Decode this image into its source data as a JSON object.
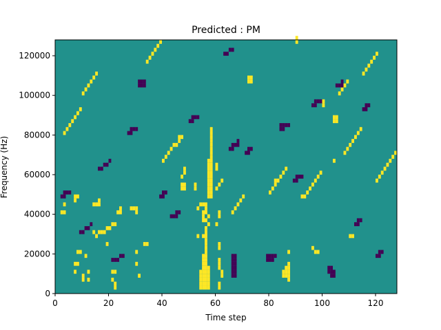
{
  "chart_data": {
    "type": "heatmap",
    "title": "Predicted : PM",
    "xlabel": "Time step",
    "ylabel": "Frequency (Hz)",
    "xlim": [
      0,
      128
    ],
    "ylim": [
      0,
      128000
    ],
    "x_ticks": [
      0,
      20,
      40,
      60,
      80,
      100,
      120
    ],
    "y_ticks": [
      0,
      20000,
      40000,
      60000,
      80000,
      100000,
      120000
    ],
    "grid": false,
    "legend": "none",
    "colors": {
      "background_value": "#21918c",
      "high_value": "#fde725",
      "low_value": "#440154"
    },
    "grid_shape": {
      "time_steps": 128,
      "freq_bins": 64,
      "bin_hz": 2000
    },
    "cells_high": [
      [
        54,
        1
      ],
      [
        55,
        1
      ],
      [
        56,
        1
      ],
      [
        57,
        1
      ],
      [
        54,
        2
      ],
      [
        55,
        2
      ],
      [
        56,
        2
      ],
      [
        57,
        2
      ],
      [
        54,
        3
      ],
      [
        55,
        3
      ],
      [
        56,
        3
      ],
      [
        57,
        3
      ],
      [
        54,
        4
      ],
      [
        55,
        4
      ],
      [
        56,
        4
      ],
      [
        57,
        4
      ],
      [
        54,
        5
      ],
      [
        55,
        5
      ],
      [
        56,
        5
      ],
      [
        57,
        5
      ],
      [
        55,
        6
      ],
      [
        56,
        6
      ],
      [
        57,
        6
      ],
      [
        55,
        7
      ],
      [
        56,
        7
      ],
      [
        55,
        8
      ],
      [
        56,
        8
      ],
      [
        55,
        9
      ],
      [
        56,
        9
      ],
      [
        56,
        10
      ],
      [
        56,
        11
      ],
      [
        56,
        12
      ],
      [
        56,
        13
      ],
      [
        55,
        14
      ],
      [
        56,
        14
      ],
      [
        56,
        15
      ],
      [
        56,
        16
      ],
      [
        57,
        17
      ],
      [
        55,
        18
      ],
      [
        56,
        18
      ],
      [
        57,
        19
      ],
      [
        55,
        20
      ],
      [
        56,
        20
      ],
      [
        56,
        21
      ],
      [
        55,
        22
      ],
      [
        56,
        22
      ],
      [
        57,
        24
      ],
      [
        58,
        24
      ],
      [
        57,
        25
      ],
      [
        58,
        25
      ],
      [
        57,
        26
      ],
      [
        58,
        26
      ],
      [
        57,
        27
      ],
      [
        58,
        27
      ],
      [
        57,
        28
      ],
      [
        58,
        28
      ],
      [
        57,
        29
      ],
      [
        58,
        29
      ],
      [
        57,
        30
      ],
      [
        58,
        30
      ],
      [
        57,
        31
      ],
      [
        58,
        31
      ],
      [
        57,
        32
      ],
      [
        58,
        32
      ],
      [
        57,
        33
      ],
      [
        58,
        33
      ],
      [
        58,
        34
      ],
      [
        58,
        35
      ],
      [
        58,
        36
      ],
      [
        58,
        37
      ],
      [
        58,
        38
      ],
      [
        58,
        39
      ],
      [
        58,
        40
      ],
      [
        58,
        41
      ],
      [
        53,
        14
      ],
      [
        53,
        21
      ],
      [
        54,
        22
      ],
      [
        55,
        19
      ],
      [
        61,
        20
      ],
      [
        61,
        19
      ],
      [
        60,
        17
      ],
      [
        61,
        11
      ],
      [
        61,
        12
      ],
      [
        61,
        6
      ],
      [
        61,
        7
      ],
      [
        61,
        8
      ],
      [
        61,
        1
      ],
      [
        61,
        2
      ],
      [
        62,
        4
      ],
      [
        62,
        5
      ],
      [
        85,
        4
      ],
      [
        85,
        5
      ],
      [
        86,
        4
      ],
      [
        86,
        5
      ],
      [
        86,
        6
      ],
      [
        87,
        3
      ],
      [
        87,
        4
      ],
      [
        87,
        5
      ],
      [
        87,
        6
      ],
      [
        87,
        7
      ],
      [
        60,
        31
      ],
      [
        60,
        32
      ],
      [
        72,
        53
      ],
      [
        72,
        54
      ],
      [
        73,
        53
      ],
      [
        73,
        54
      ],
      [
        104,
        43
      ],
      [
        104,
        44
      ],
      [
        105,
        43
      ],
      [
        105,
        44
      ],
      [
        90,
        64
      ],
      [
        90,
        63
      ],
      [
        87,
        10
      ],
      [
        96,
        11
      ],
      [
        97,
        10
      ],
      [
        98,
        10
      ],
      [
        104,
        33
      ],
      [
        110,
        14
      ],
      [
        111,
        14
      ],
      [
        30,
        10
      ],
      [
        30,
        7
      ],
      [
        31,
        4
      ],
      [
        33,
        12
      ],
      [
        34,
        12
      ],
      [
        21,
        5
      ],
      [
        22,
        5
      ],
      [
        21,
        3
      ],
      [
        22,
        2
      ],
      [
        22,
        1
      ],
      [
        7,
        7
      ],
      [
        7,
        5
      ],
      [
        8,
        7
      ],
      [
        10,
        3
      ],
      [
        10,
        4
      ],
      [
        12,
        3
      ],
      [
        12,
        5
      ],
      [
        8,
        10
      ],
      [
        9,
        10
      ],
      [
        11,
        9
      ],
      [
        19,
        12
      ],
      [
        14,
        15
      ],
      [
        15,
        14
      ],
      [
        16,
        15
      ],
      [
        17,
        15
      ],
      [
        18,
        15
      ],
      [
        19,
        16
      ],
      [
        20,
        16
      ],
      [
        21,
        17
      ],
      [
        22,
        17
      ],
      [
        2,
        20
      ],
      [
        3,
        20
      ],
      [
        3,
        22
      ],
      [
        7,
        23
      ],
      [
        7,
        24
      ],
      [
        8,
        24
      ],
      [
        14,
        22
      ],
      [
        15,
        22
      ],
      [
        16,
        22
      ],
      [
        16,
        23
      ],
      [
        23,
        20
      ],
      [
        24,
        20
      ],
      [
        24,
        21
      ],
      [
        28,
        21
      ],
      [
        29,
        21
      ],
      [
        30,
        20
      ],
      [
        30,
        21
      ],
      [
        47,
        26
      ],
      [
        48,
        26
      ],
      [
        47,
        27
      ],
      [
        48,
        27
      ],
      [
        52,
        26
      ],
      [
        52,
        27
      ],
      [
        47,
        29
      ],
      [
        48,
        30
      ],
      [
        48,
        31
      ],
      [
        40,
        33
      ],
      [
        41,
        34
      ],
      [
        42,
        35
      ],
      [
        43,
        36
      ],
      [
        44,
        37
      ],
      [
        45,
        37
      ],
      [
        46,
        38
      ],
      [
        46,
        39
      ],
      [
        47,
        39
      ],
      [
        60,
        26
      ],
      [
        61,
        27
      ],
      [
        62,
        28
      ],
      [
        66,
        20
      ],
      [
        67,
        21
      ],
      [
        68,
        22
      ],
      [
        69,
        23
      ],
      [
        70,
        24
      ],
      [
        80,
        25
      ],
      [
        81,
        26
      ],
      [
        82,
        27
      ],
      [
        82,
        28
      ],
      [
        83,
        28
      ],
      [
        84,
        29
      ],
      [
        85,
        30
      ],
      [
        86,
        31
      ],
      [
        92,
        24
      ],
      [
        93,
        24
      ],
      [
        94,
        25
      ],
      [
        95,
        26
      ],
      [
        96,
        27
      ],
      [
        97,
        28
      ],
      [
        98,
        29
      ],
      [
        99,
        30
      ],
      [
        108,
        35
      ],
      [
        109,
        36
      ],
      [
        110,
        37
      ],
      [
        111,
        38
      ],
      [
        112,
        39
      ],
      [
        113,
        40
      ],
      [
        114,
        41
      ],
      [
        120,
        28
      ],
      [
        121,
        29
      ],
      [
        122,
        30
      ],
      [
        123,
        31
      ],
      [
        124,
        32
      ],
      [
        125,
        33
      ],
      [
        126,
        34
      ],
      [
        127,
        35
      ],
      [
        100,
        47
      ],
      [
        100,
        48
      ],
      [
        106,
        50
      ],
      [
        107,
        51
      ],
      [
        108,
        52
      ],
      [
        109,
        53
      ],
      [
        115,
        55
      ],
      [
        116,
        56
      ],
      [
        117,
        57
      ],
      [
        118,
        58
      ],
      [
        119,
        59
      ],
      [
        120,
        60
      ],
      [
        34,
        58
      ],
      [
        35,
        59
      ],
      [
        36,
        60
      ],
      [
        37,
        61
      ],
      [
        38,
        62
      ],
      [
        39,
        63
      ],
      [
        3,
        40
      ],
      [
        4,
        41
      ],
      [
        5,
        42
      ],
      [
        6,
        43
      ],
      [
        7,
        44
      ],
      [
        8,
        45
      ],
      [
        9,
        46
      ],
      [
        10,
        50
      ],
      [
        11,
        51
      ],
      [
        12,
        52
      ],
      [
        13,
        53
      ],
      [
        14,
        54
      ],
      [
        15,
        55
      ]
    ],
    "cells_low": [
      [
        66,
        4
      ],
      [
        67,
        4
      ],
      [
        66,
        5
      ],
      [
        67,
        5
      ],
      [
        66,
        6
      ],
      [
        67,
        6
      ],
      [
        66,
        7
      ],
      [
        67,
        7
      ],
      [
        66,
        8
      ],
      [
        67,
        8
      ],
      [
        66,
        9
      ],
      [
        67,
        9
      ],
      [
        102,
        5
      ],
      [
        103,
        5
      ],
      [
        102,
        6
      ],
      [
        103,
        6
      ],
      [
        103,
        4
      ],
      [
        104,
        4
      ],
      [
        104,
        5
      ],
      [
        79,
        8
      ],
      [
        80,
        8
      ],
      [
        81,
        8
      ],
      [
        79,
        9
      ],
      [
        80,
        9
      ],
      [
        81,
        9
      ],
      [
        82,
        9
      ],
      [
        31,
        52
      ],
      [
        32,
        52
      ],
      [
        31,
        53
      ],
      [
        32,
        53
      ],
      [
        33,
        52
      ],
      [
        33,
        53
      ],
      [
        84,
        41
      ],
      [
        85,
        41
      ],
      [
        84,
        42
      ],
      [
        85,
        42
      ],
      [
        86,
        42
      ],
      [
        87,
        42
      ],
      [
        65,
        36
      ],
      [
        66,
        36
      ],
      [
        66,
        37
      ],
      [
        67,
        37
      ],
      [
        68,
        37
      ],
      [
        68,
        38
      ],
      [
        96,
        47
      ],
      [
        97,
        47
      ],
      [
        97,
        48
      ],
      [
        98,
        48
      ],
      [
        99,
        48
      ],
      [
        105,
        52
      ],
      [
        106,
        52
      ],
      [
        107,
        52
      ],
      [
        107,
        53
      ],
      [
        115,
        46
      ],
      [
        116,
        46
      ],
      [
        116,
        47
      ],
      [
        117,
        47
      ],
      [
        43,
        19
      ],
      [
        44,
        19
      ],
      [
        45,
        19
      ],
      [
        45,
        20
      ],
      [
        46,
        20
      ],
      [
        21,
        8
      ],
      [
        22,
        8
      ],
      [
        23,
        8
      ],
      [
        24,
        9
      ],
      [
        25,
        9
      ],
      [
        9,
        15
      ],
      [
        10,
        15
      ],
      [
        11,
        16
      ],
      [
        12,
        16
      ],
      [
        13,
        17
      ],
      [
        2,
        24
      ],
      [
        3,
        24
      ],
      [
        3,
        25
      ],
      [
        4,
        25
      ],
      [
        5,
        25
      ],
      [
        16,
        31
      ],
      [
        17,
        31
      ],
      [
        18,
        32
      ],
      [
        19,
        32
      ],
      [
        20,
        33
      ],
      [
        27,
        40
      ],
      [
        28,
        40
      ],
      [
        28,
        41
      ],
      [
        29,
        41
      ],
      [
        30,
        41
      ],
      [
        50,
        43
      ],
      [
        51,
        43
      ],
      [
        51,
        44
      ],
      [
        52,
        44
      ],
      [
        53,
        44
      ],
      [
        71,
        35
      ],
      [
        72,
        35
      ],
      [
        72,
        36
      ],
      [
        73,
        36
      ],
      [
        89,
        28
      ],
      [
        90,
        28
      ],
      [
        90,
        29
      ],
      [
        91,
        29
      ],
      [
        92,
        29
      ],
      [
        112,
        17
      ],
      [
        113,
        17
      ],
      [
        113,
        18
      ],
      [
        114,
        18
      ],
      [
        120,
        9
      ],
      [
        121,
        9
      ],
      [
        121,
        10
      ],
      [
        122,
        10
      ],
      [
        63,
        60
      ],
      [
        64,
        60
      ],
      [
        65,
        61
      ],
      [
        66,
        61
      ],
      [
        39,
        24
      ],
      [
        40,
        24
      ],
      [
        40,
        25
      ],
      [
        41,
        25
      ]
    ]
  }
}
